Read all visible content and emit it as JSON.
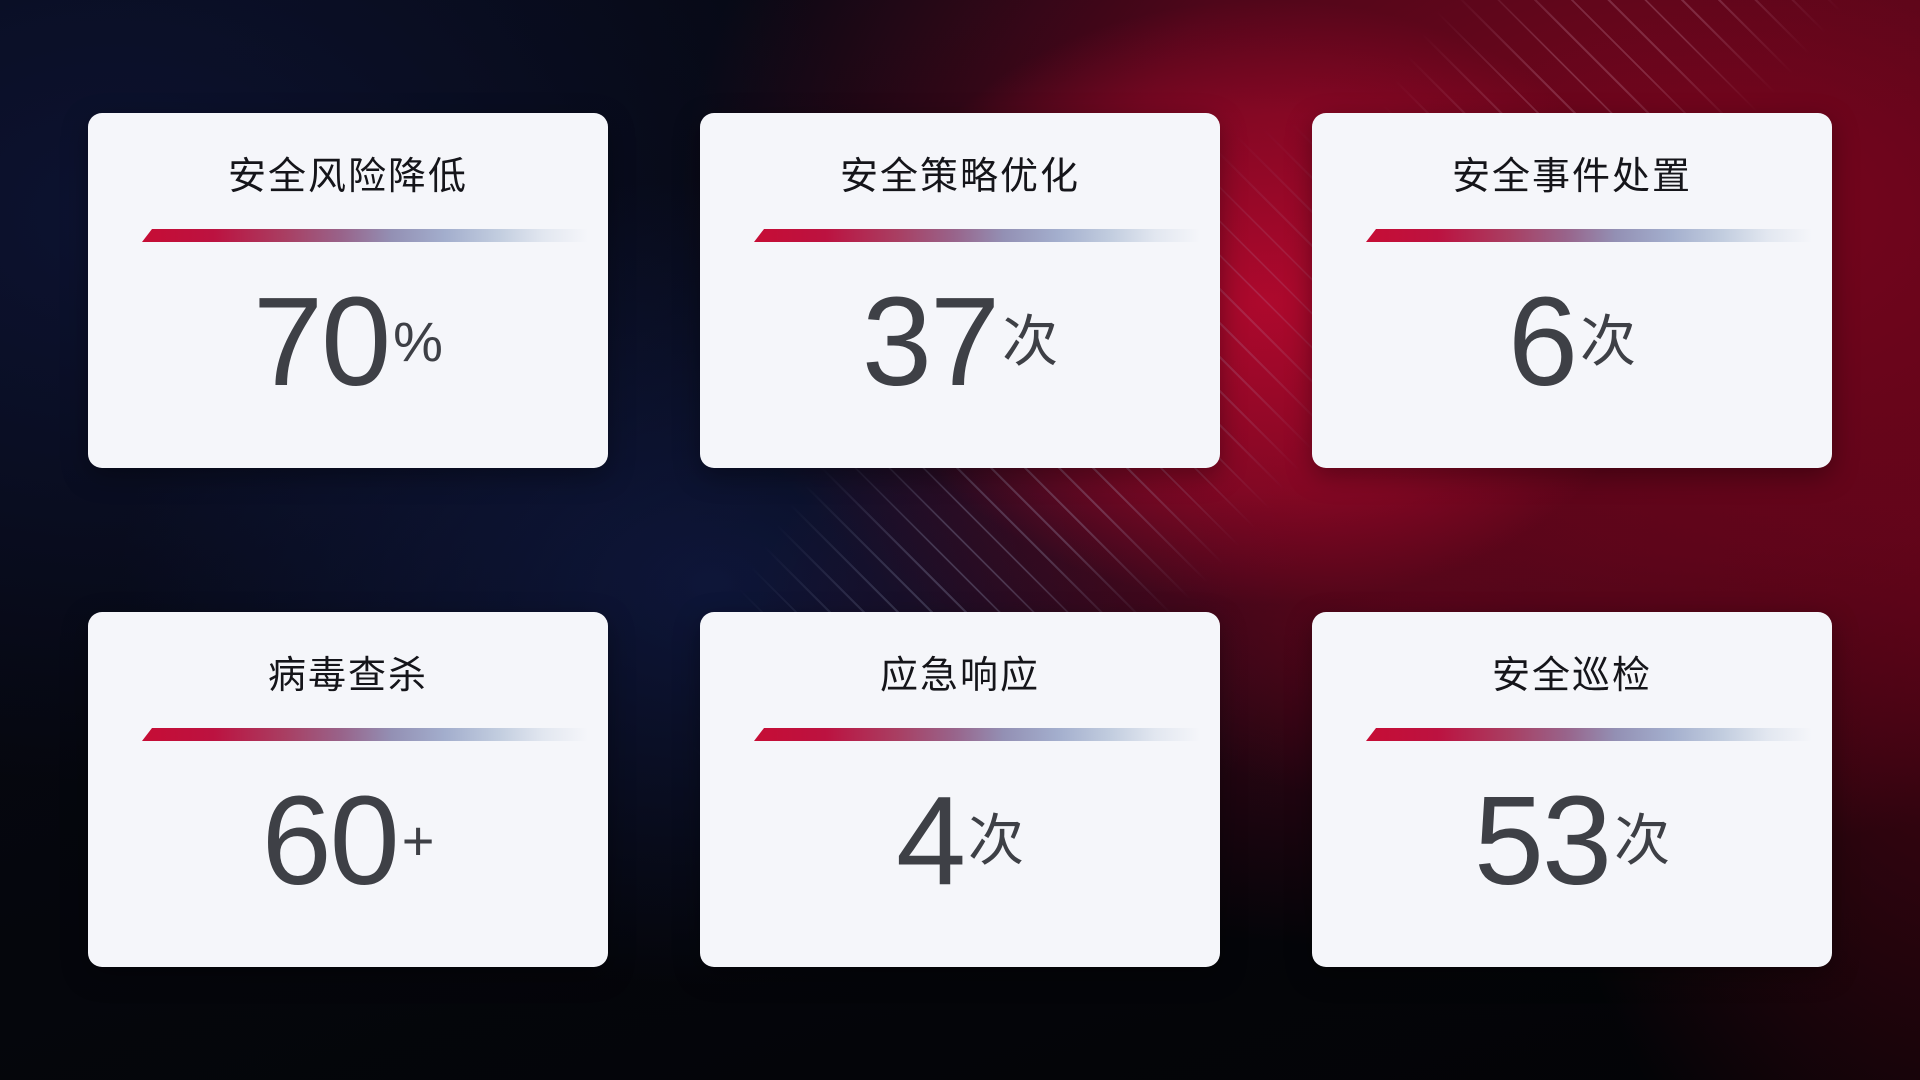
{
  "theme": {
    "accent-red": "#c60d35",
    "card-bg": "#f5f6fa",
    "title-color": "#15151a",
    "number-color": "#3e4046",
    "bg-dark-navy": "#0d1332",
    "bg-crimson": "#a40b2c"
  },
  "cards": [
    {
      "title": "安全风险降低",
      "value": "70",
      "suffix": "%"
    },
    {
      "title": "安全策略优化",
      "value": "37",
      "suffix": "次"
    },
    {
      "title": "安全事件处置",
      "value": "6",
      "suffix": "次"
    },
    {
      "title": "病毒查杀",
      "value": "60",
      "suffix": "+"
    },
    {
      "title": "应急响应",
      "value": "4",
      "suffix": "次"
    },
    {
      "title": "安全巡检",
      "value": "53",
      "suffix": "次"
    }
  ]
}
